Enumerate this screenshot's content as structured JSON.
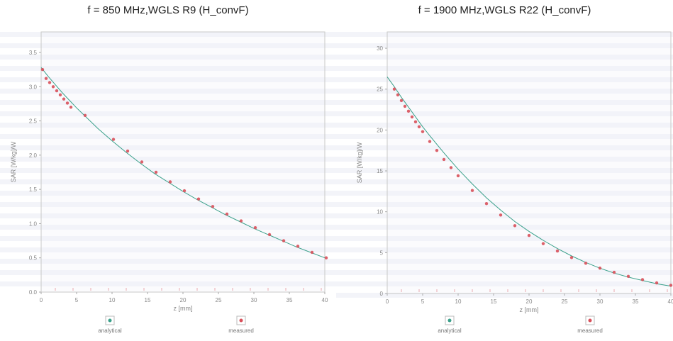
{
  "chart_data": [
    {
      "type": "scatter",
      "title": "f = 850 MHz,WGLS R9 (H_convF)",
      "xlabel": "z [mm]",
      "ylabel": "SAR [W/kg]/W",
      "xlim": [
        0,
        40
      ],
      "ylim": [
        0,
        3.8
      ],
      "xticks": [
        "0",
        "5",
        "10",
        "15",
        "20",
        "25",
        "30",
        "35",
        "40"
      ],
      "yticks": [
        "0.0",
        "0.5",
        "1.0",
        "1.5",
        "2.0",
        "2.5",
        "3.0",
        "3.5"
      ],
      "series": [
        {
          "name": "analytical",
          "color": "#3aa08a",
          "x": [
            0,
            1,
            2,
            3,
            4,
            5,
            6,
            8,
            10,
            12,
            14,
            16,
            18,
            20,
            22,
            24,
            26,
            28,
            30,
            32,
            34,
            36,
            38,
            40
          ],
          "y": [
            3.28,
            3.15,
            3.03,
            2.91,
            2.8,
            2.69,
            2.59,
            2.39,
            2.21,
            2.04,
            1.88,
            1.73,
            1.6,
            1.47,
            1.35,
            1.24,
            1.13,
            1.03,
            0.93,
            0.84,
            0.75,
            0.66,
            0.58,
            0.5
          ]
        },
        {
          "name": "measured",
          "color": "#d8505a",
          "x": [
            0.2,
            0.7,
            1.2,
            1.7,
            2.2,
            2.7,
            3.2,
            3.7,
            4.2,
            6.2,
            10.2,
            12.2,
            14.2,
            16.2,
            18.2,
            20.2,
            22.2,
            24.2,
            26.2,
            28.2,
            30.2,
            32.2,
            34.2,
            36.2,
            38.2,
            40.2
          ],
          "y": [
            3.25,
            3.12,
            3.06,
            3.0,
            2.94,
            2.88,
            2.82,
            2.76,
            2.7,
            2.58,
            2.23,
            2.06,
            1.9,
            1.75,
            1.61,
            1.48,
            1.36,
            1.25,
            1.14,
            1.04,
            0.94,
            0.84,
            0.75,
            0.67,
            0.58,
            0.5
          ]
        }
      ]
    },
    {
      "type": "scatter",
      "title": "f = 1900 MHz,WGLS R22 (H_convF)",
      "xlabel": "z [mm]",
      "ylabel": "SAR [W/kg]/W",
      "xlim": [
        0,
        40
      ],
      "ylim": [
        0,
        32
      ],
      "xticks": [
        "0",
        "5",
        "10",
        "15",
        "20",
        "25",
        "30",
        "35",
        "40"
      ],
      "yticks": [
        "0",
        "5",
        "10",
        "15",
        "20",
        "25",
        "30"
      ],
      "series": [
        {
          "name": "analytical",
          "color": "#3aa08a",
          "x": [
            0,
            1,
            2,
            3,
            4,
            5,
            6,
            8,
            10,
            12,
            14,
            16,
            18,
            20,
            22,
            24,
            26,
            28,
            30,
            32,
            34,
            36,
            38,
            40
          ],
          "y": [
            26.5,
            25.3,
            24.0,
            22.8,
            21.6,
            20.4,
            19.3,
            17.2,
            15.2,
            13.4,
            11.7,
            10.2,
            8.8,
            7.6,
            6.5,
            5.5,
            4.6,
            3.8,
            3.1,
            2.5,
            2.0,
            1.6,
            1.2,
            0.9
          ]
        },
        {
          "name": "measured",
          "color": "#d8505a",
          "x": [
            1,
            1.5,
            2,
            2.5,
            3,
            3.5,
            4,
            4.5,
            5,
            6,
            7,
            8,
            9,
            10,
            12,
            14,
            16,
            18,
            20,
            22,
            24,
            26,
            28,
            30,
            32,
            34,
            36,
            38,
            40
          ],
          "y": [
            25.0,
            24.3,
            23.6,
            22.9,
            22.3,
            21.6,
            21.0,
            20.4,
            19.8,
            18.6,
            17.5,
            16.4,
            15.4,
            14.4,
            12.6,
            11.0,
            9.6,
            8.3,
            7.1,
            6.1,
            5.2,
            4.4,
            3.7,
            3.1,
            2.6,
            2.1,
            1.7,
            1.3,
            1.0
          ]
        }
      ]
    }
  ]
}
